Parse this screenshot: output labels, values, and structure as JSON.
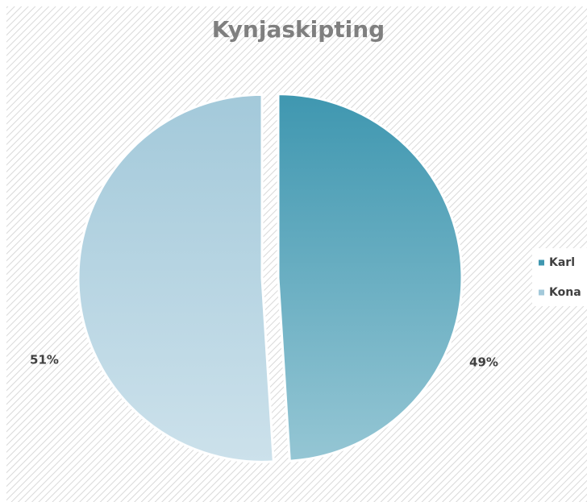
{
  "chart_data": {
    "type": "pie",
    "title": "Kynjaskipting",
    "categories": [
      "Karl",
      "Kona"
    ],
    "values": [
      49,
      51
    ],
    "value_labels": [
      "49%",
      "51%"
    ],
    "colors": [
      "#3f97b0",
      "#a3c9da"
    ],
    "legend": "right"
  }
}
